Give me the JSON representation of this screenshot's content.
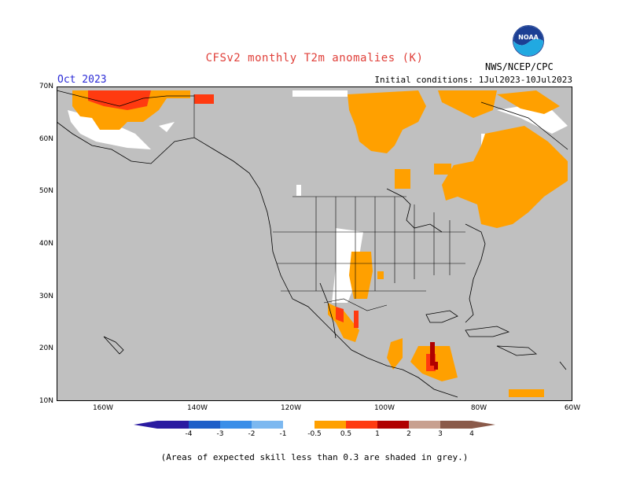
{
  "header": {
    "title": "CFSv2 monthly T2m anomalies (K)",
    "period": "Oct 2023",
    "initial_conditions": "Initial conditions: 1Jul2023-10Jul2023",
    "agency": "NWS/NCEP/CPC",
    "logo_text": "NOAA"
  },
  "map": {
    "lat_ticks": [
      "70N",
      "60N",
      "50N",
      "40N",
      "30N",
      "20N",
      "10N"
    ],
    "lon_ticks": [
      "160W",
      "140W",
      "120W",
      "100W",
      "80W",
      "60W"
    ],
    "colors": {
      "grey_shade": "#c0c0c0",
      "orange": "#ffa000",
      "red_orange": "#ff4d1f",
      "dark_red": "#b00000",
      "white": "#ffffff"
    }
  },
  "colorbar": {
    "ticks": [
      "-4",
      "-3",
      "-2",
      "-1",
      "-0.5",
      "0.5",
      "1",
      "2",
      "3",
      "4"
    ],
    "colors": [
      "#2a1aa0",
      "#1d5ec8",
      "#3a8ee8",
      "#7cb8f0",
      "#ffffff",
      "#ffa000",
      "#ff3a10",
      "#b00000",
      "#c8a090",
      "#8a5a4a"
    ]
  },
  "footnote": "(Areas of expected skill less than 0.3 are shaded in grey.)"
}
